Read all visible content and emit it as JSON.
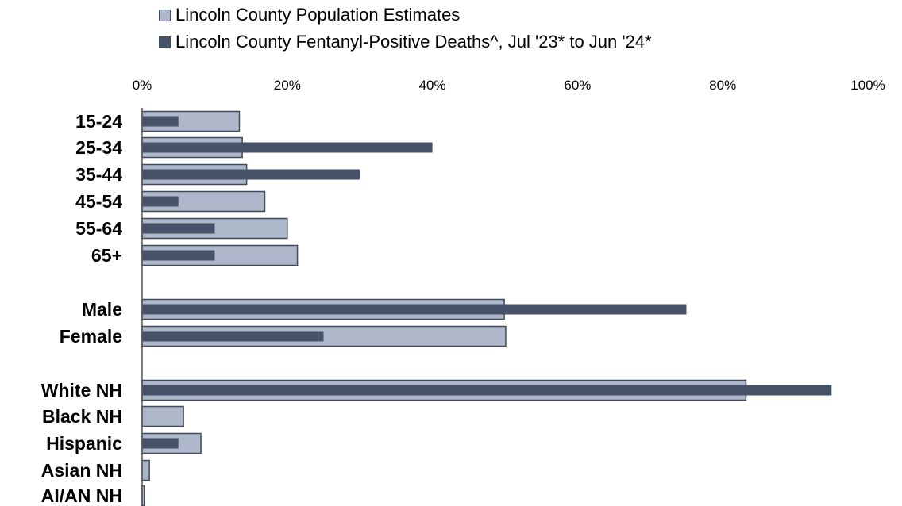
{
  "chart_data": {
    "type": "bar",
    "orientation": "horizontal",
    "categories": [
      "15-24",
      "25-34",
      "35-44",
      "45-54",
      "55-64",
      "65+",
      "Male",
      "Female",
      "White NH",
      "Black NH",
      "Hispanic",
      "Asian NH",
      "AI/AN NH"
    ],
    "series": [
      {
        "name": "Lincoln County Population Estimates",
        "values": [
          13.4,
          13.8,
          14.4,
          16.9,
          20.0,
          21.4,
          49.9,
          50.1,
          83.2,
          5.7,
          8.1,
          1.0,
          0.3
        ]
      },
      {
        "name": "Lincoln County Fentanyl-Positive Deaths^, Jul '23* to Jun '24*",
        "values": [
          5,
          40,
          30,
          5,
          10,
          10,
          75,
          25,
          95,
          0,
          5,
          0,
          0
        ]
      }
    ],
    "xlim": [
      0,
      100
    ],
    "x_ticks": [
      "0%",
      "20%",
      "40%",
      "60%",
      "80%",
      "100%"
    ],
    "axis_position": "top",
    "grid": false,
    "legend_position": "top",
    "colors": {
      "population": "#aeb8ca",
      "deaths": "#465267",
      "border": "#3f4a5c"
    }
  }
}
